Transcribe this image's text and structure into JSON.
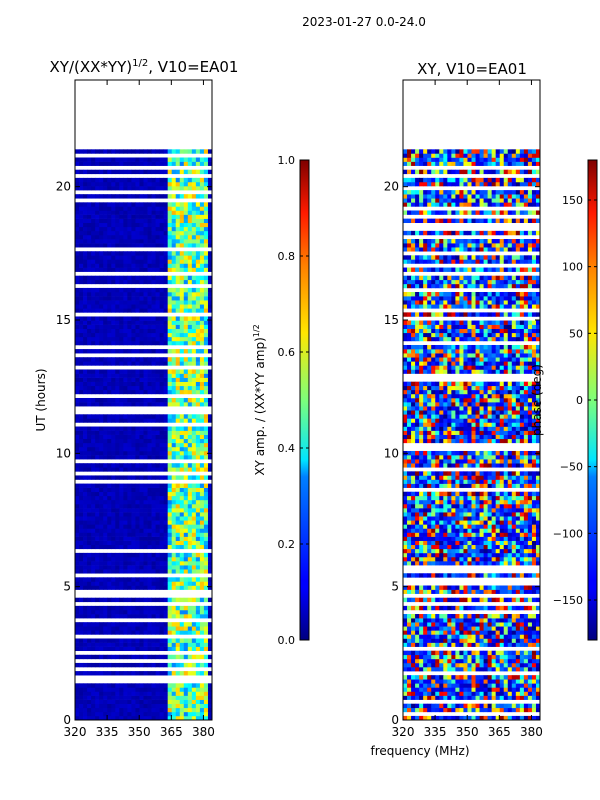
{
  "suptitle": "2023-01-27 0.0-24.0",
  "shared_xlabel": "frequency (MHz)",
  "chart_data": [
    {
      "type": "heatmap",
      "title_main": "XY/(XX*YY)",
      "title_sup": "1/2",
      "title_tail": ", V10=EA01",
      "xlabel": "",
      "ylabel": "UT (hours)",
      "xlim": [
        320,
        384
      ],
      "ylim": [
        0,
        24
      ],
      "xticks": [
        320,
        335,
        350,
        365,
        380
      ],
      "yticks": [
        0,
        5,
        10,
        15,
        20
      ],
      "data_extent_hours": [
        0,
        21.4
      ],
      "signal_band_mhz": [
        362,
        381
      ],
      "colorbar": {
        "label_main": "XY amp. / (XX*YY amp)",
        "label_sup": "1/2",
        "range": [
          0.0,
          1.0
        ],
        "ticks": [
          "0.0",
          "0.2",
          "0.4",
          "0.6",
          "0.8",
          "1.0"
        ],
        "colormap": "jet"
      }
    },
    {
      "type": "heatmap",
      "title_main": "XY, V10=EA01",
      "xlabel": "frequency (MHz)",
      "ylabel": "",
      "xlim": [
        320,
        384
      ],
      "ylim": [
        0,
        24
      ],
      "xticks": [
        320,
        335,
        350,
        365,
        380
      ],
      "yticks": [
        0,
        5,
        10,
        15,
        20
      ],
      "data_extent_hours": [
        0,
        21.4
      ],
      "colorbar": {
        "label_main": "phase (deg)",
        "range": [
          -180,
          180
        ],
        "ticks": [
          "-150",
          "-100",
          "-50",
          "0",
          "50",
          "100",
          "150"
        ],
        "colormap": "jet"
      }
    }
  ],
  "colors": {
    "low": "#00007f",
    "mid_low": "#0080ff",
    "cyan": "#00e5ff",
    "mid": "#7dff7a",
    "mid_high": "#ffe600",
    "high": "#ff3a00",
    "max": "#7f0000"
  }
}
